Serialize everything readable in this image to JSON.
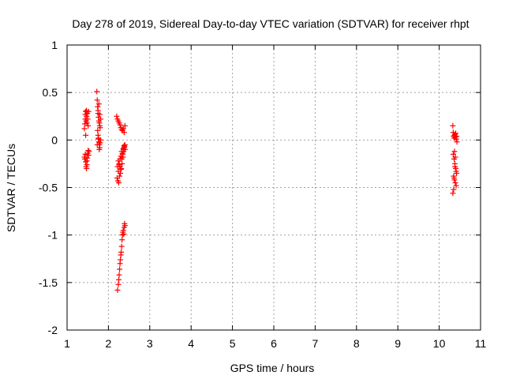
{
  "chart_data": {
    "type": "scatter",
    "title": "Day 278 of 2019, Sidereal Day-to-day VTEC variation (SDTVAR) for receiver rhpt",
    "xlabel": "GPS time / hours",
    "ylabel": "SDTVAR / TECUs",
    "xlim": [
      1,
      11
    ],
    "ylim": [
      -2,
      1
    ],
    "xticks": [
      1,
      2,
      3,
      4,
      5,
      6,
      7,
      8,
      9,
      10,
      11
    ],
    "yticks": [
      -2,
      -1.5,
      -1,
      -0.5,
      0,
      0.5,
      1
    ],
    "ytick_labels": [
      "-2",
      "-1.5",
      "-1",
      "-0.5",
      "0",
      "0.5",
      "1"
    ],
    "grid": true,
    "marker": "+",
    "color": "#ff0000",
    "series": [
      {
        "x": [
          1.42,
          1.43,
          1.44,
          1.44,
          1.45,
          1.46,
          1.47,
          1.47,
          1.48,
          1.49,
          1.5,
          1.51,
          1.52,
          1.42,
          1.43,
          1.44,
          1.45,
          1.46,
          1.47,
          1.48,
          1.49,
          1.5,
          1.51,
          1.52,
          1.53,
          1.45,
          1.48,
          1.72,
          1.73,
          1.74,
          1.75,
          1.76,
          1.77,
          1.78,
          1.79,
          1.8,
          1.74,
          1.75,
          1.76,
          1.77,
          1.78,
          1.79,
          1.8,
          1.81,
          1.73,
          1.75,
          1.77,
          1.79,
          1.81,
          1.76,
          1.78,
          2.2,
          2.22,
          2.24,
          2.26,
          2.28,
          2.3,
          2.32,
          2.34,
          2.36,
          2.38,
          2.4,
          2.24,
          2.26,
          2.28,
          2.3,
          2.32,
          2.34,
          2.36,
          2.38,
          2.4,
          2.21,
          2.23,
          2.25,
          2.27,
          2.29,
          2.31,
          2.33,
          2.35,
          2.37,
          2.39,
          2.22,
          2.24,
          2.26,
          2.28,
          2.3,
          2.32,
          2.34,
          2.36,
          2.38,
          2.4,
          2.22,
          2.24,
          2.25,
          2.26,
          2.27,
          2.28,
          2.29,
          2.3,
          2.31,
          2.32,
          2.33,
          2.34,
          2.35,
          2.36,
          2.37,
          2.38,
          2.39,
          2.4,
          10.33,
          10.34,
          10.35,
          10.36,
          10.37,
          10.38,
          10.39,
          10.4,
          10.41,
          10.42,
          10.43,
          10.34,
          10.36,
          10.38,
          10.4,
          10.42,
          10.35,
          10.37,
          10.39,
          10.41,
          10.33,
          10.35,
          10.37,
          10.39,
          10.41,
          10.36,
          10.38
        ],
        "y": [
          0.12,
          0.17,
          0.22,
          0.27,
          0.3,
          0.2,
          0.31,
          0.25,
          0.18,
          0.28,
          0.22,
          0.15,
          0.3,
          -0.18,
          -0.2,
          -0.15,
          -0.23,
          -0.28,
          -0.3,
          -0.22,
          -0.19,
          -0.14,
          -0.11,
          -0.16,
          -0.12,
          0.05,
          -0.26,
          0.51,
          0.42,
          0.35,
          0.28,
          0.24,
          0.2,
          0.18,
          0.15,
          0.13,
          0.1,
          0.05,
          0.02,
          -0.02,
          -0.05,
          -0.08,
          -0.03,
          0.0,
          -0.05,
          0.31,
          0.38,
          0.27,
          0.22,
          0.01,
          -0.1,
          0.25,
          0.22,
          0.2,
          0.18,
          0.16,
          0.13,
          0.11,
          0.1,
          0.12,
          0.08,
          0.15,
          -0.22,
          -0.25,
          -0.28,
          -0.31,
          -0.2,
          -0.15,
          -0.1,
          -0.08,
          -0.05,
          -0.4,
          -0.43,
          -0.45,
          -0.38,
          -0.35,
          -0.3,
          -0.25,
          -0.18,
          -0.12,
          -0.07,
          -0.28,
          -0.33,
          -0.26,
          -0.2,
          -0.17,
          -0.12,
          -0.14,
          -0.09,
          -0.06,
          -0.1,
          -1.58,
          -1.52,
          -1.47,
          -1.42,
          -1.36,
          -1.3,
          -1.26,
          -1.21,
          -1.18,
          -1.12,
          -1.05,
          -1.0,
          -0.97,
          -0.95,
          -0.99,
          -0.92,
          -0.88,
          -0.9,
          0.15,
          0.08,
          0.04,
          0.02,
          0.05,
          0.06,
          0.03,
          0.07,
          0.01,
          0.04,
          -0.02,
          -0.15,
          -0.2,
          -0.25,
          -0.3,
          -0.35,
          -0.38,
          -0.42,
          -0.45,
          -0.48,
          -0.56,
          -0.52,
          -0.12,
          -0.18,
          -0.33,
          -0.4,
          -0.28
        ]
      }
    ]
  }
}
